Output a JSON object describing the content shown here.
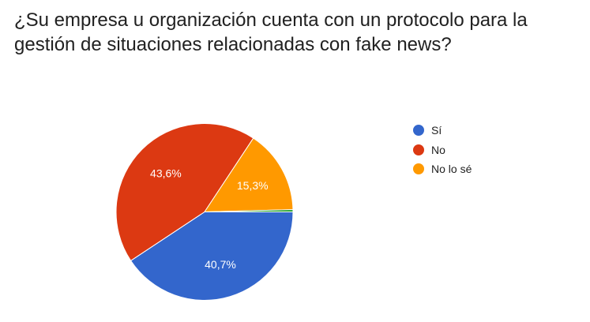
{
  "chart_data": {
    "type": "pie",
    "title": "¿Su empresa u organización cuenta con un protocolo para la gestión de situaciones relacionadas con fake news?",
    "slices": [
      {
        "label": "Sí",
        "value": 40.7,
        "value_label": "40,7%",
        "color": "#3366cc"
      },
      {
        "label": "No",
        "value": 43.6,
        "value_label": "43,6%",
        "color": "#dc3912"
      },
      {
        "label": "No lo sé",
        "value": 15.3,
        "value_label": "15,3%",
        "color": "#ff9900"
      },
      {
        "label": "",
        "value": 0.4,
        "value_label": "",
        "color": "#109618"
      }
    ],
    "legend_position": "right"
  }
}
